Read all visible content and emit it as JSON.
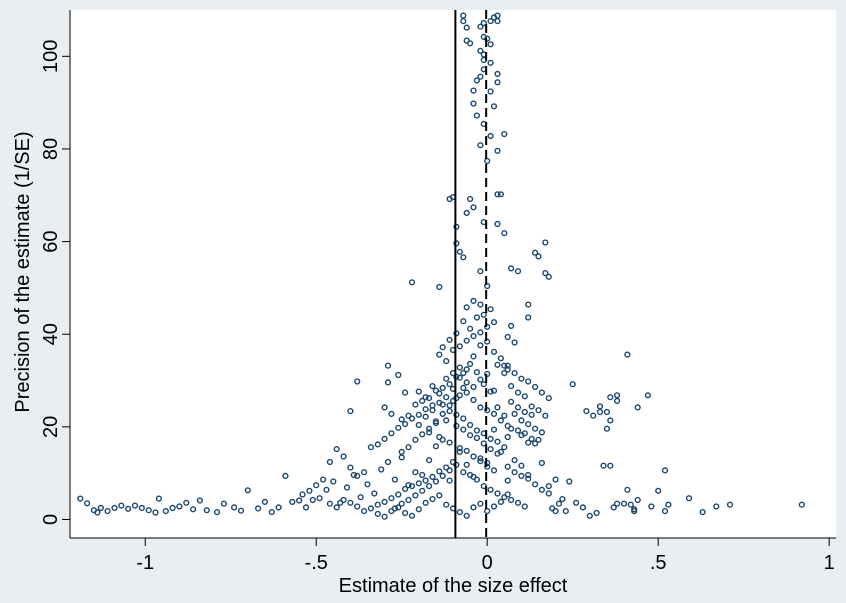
{
  "chart_data": {
    "type": "scatter",
    "xlabel": "Estimate of the size effect",
    "ylabel": "Precision of the estimate (1/SE)",
    "xlim": [
      -1.22,
      1.02
    ],
    "ylim": [
      -4,
      110
    ],
    "x_ticks": [
      -1,
      -0.5,
      0,
      0.5,
      1
    ],
    "x_tick_labels": [
      "-1",
      "-.5",
      "0",
      ".5",
      "1"
    ],
    "y_ticks": [
      0,
      20,
      40,
      60,
      80,
      100
    ],
    "y_tick_labels": [
      "0",
      "20",
      "40",
      "60",
      "80",
      "100"
    ],
    "grid": false,
    "legend": "none",
    "reference_lines": [
      {
        "axis": "x",
        "value": -0.093,
        "style": "solid"
      },
      {
        "axis": "x",
        "value": -0.003,
        "style": "dashed"
      }
    ],
    "colors": {
      "marker": "#1a476f",
      "background": "#e9eef2",
      "plot_area": "#ffffff",
      "axis": "#000000"
    },
    "points": [
      [
        -1.19,
        4.5
      ],
      [
        -1.17,
        3.5
      ],
      [
        -1.15,
        2
      ],
      [
        -1.14,
        1.5
      ],
      [
        -1.13,
        2.5
      ],
      [
        -1.11,
        1.8
      ],
      [
        -1.09,
        2.5
      ],
      [
        -1.07,
        3
      ],
      [
        -1.05,
        2.3
      ],
      [
        -1.03,
        3
      ],
      [
        -1.01,
        2.5
      ],
      [
        -0.99,
        2
      ],
      [
        -0.97,
        1.5
      ],
      [
        -0.96,
        4.5
      ],
      [
        -0.94,
        1.8
      ],
      [
        -0.92,
        2.5
      ],
      [
        -0.9,
        2.8
      ],
      [
        -0.88,
        3.6
      ],
      [
        -0.86,
        2.2
      ],
      [
        -0.84,
        4.1
      ],
      [
        -0.82,
        2
      ],
      [
        -0.79,
        1.6
      ],
      [
        -0.77,
        3.4
      ],
      [
        -0.74,
        2.6
      ],
      [
        -0.72,
        1.9
      ],
      [
        -0.7,
        6.3
      ],
      [
        -0.67,
        2.4
      ],
      [
        -0.65,
        3.8
      ],
      [
        -0.63,
        1.6
      ],
      [
        -0.61,
        2.6
      ],
      [
        -0.59,
        9.4
      ],
      [
        -0.57,
        3.8
      ],
      [
        -0.55,
        4.1
      ],
      [
        -0.53,
        2.6
      ],
      [
        -0.51,
        4.2
      ],
      [
        -0.49,
        4.6
      ],
      [
        -0.47,
        6.4
      ],
      [
        -0.45,
        8.2
      ],
      [
        -0.43,
        3.6
      ],
      [
        -0.41,
        6.9
      ],
      [
        -0.39,
        9.6
      ],
      [
        -0.37,
        4.8
      ],
      [
        -0.35,
        7.6
      ],
      [
        -0.33,
        5.6
      ],
      [
        -0.31,
        10.8
      ],
      [
        -0.29,
        12.4
      ],
      [
        -0.27,
        8.6
      ],
      [
        -0.25,
        14.6
      ],
      [
        -0.23,
        7.4
      ],
      [
        -0.21,
        10.2
      ],
      [
        -0.19,
        9.6
      ],
      [
        -0.17,
        12.8
      ],
      [
        -0.15,
        15.8
      ],
      [
        -0.13,
        17.2
      ],
      [
        -0.11,
        8.4
      ],
      [
        -0.08,
        14.6
      ],
      [
        -0.06,
        11.8
      ],
      [
        -0.04,
        9.2
      ],
      [
        -0.02,
        13.2
      ],
      [
        0,
        12.2
      ],
      [
        0.02,
        10.6
      ],
      [
        0.04,
        14.6
      ],
      [
        0.06,
        8.4
      ],
      [
        0.08,
        12.8
      ],
      [
        0.1,
        11.6
      ],
      [
        0.12,
        9.6
      ],
      [
        0.14,
        16.4
      ],
      [
        0.16,
        12.2
      ],
      [
        0.18,
        7.2
      ],
      [
        0.2,
        8.6
      ],
      [
        0.15,
        17.2
      ],
      [
        0.12,
        16.6
      ],
      [
        0.1,
        18.2
      ],
      [
        0.07,
        19.6
      ],
      [
        0.05,
        22.4
      ],
      [
        0.03,
        24.2
      ],
      [
        0.01,
        27.6
      ],
      [
        -0.01,
        29.2
      ],
      [
        -0.03,
        31.8
      ],
      [
        -0.05,
        33.6
      ],
      [
        -0.07,
        28.4
      ],
      [
        -0.09,
        26.2
      ],
      [
        -0.11,
        24.6
      ],
      [
        -0.13,
        22.8
      ],
      [
        -0.15,
        21.2
      ],
      [
        -0.17,
        19.6
      ],
      [
        -0.19,
        18.4
      ],
      [
        -0.21,
        17.2
      ],
      [
        -0.23,
        15.6
      ],
      [
        -0.25,
        13.4
      ],
      [
        -0.12,
        26.4
      ],
      [
        -0.1,
        28.2
      ],
      [
        -0.08,
        30.6
      ],
      [
        -0.06,
        32.4
      ],
      [
        -0.04,
        35.2
      ],
      [
        -0.02,
        37.6
      ],
      [
        0,
        38.4
      ],
      [
        0.02,
        36.2
      ],
      [
        0.04,
        34.8
      ],
      [
        0.06,
        33.2
      ],
      [
        -0.14,
        25.2
      ],
      [
        -0.11,
        23.4
      ],
      [
        -0.09,
        22.6
      ],
      [
        -0.07,
        21.8
      ],
      [
        -0.05,
        20.4
      ],
      [
        -0.03,
        19.2
      ],
      [
        -0.01,
        18.6
      ],
      [
        0.01,
        17.4
      ],
      [
        0.03,
        16.8
      ],
      [
        0.05,
        15.6
      ],
      [
        -0.16,
        23.6
      ],
      [
        -0.13,
        24.8
      ],
      [
        -0.1,
        25.6
      ],
      [
        -0.08,
        26.8
      ],
      [
        -0.06,
        27.4
      ],
      [
        -0.04,
        25.8
      ],
      [
        -0.02,
        24.2
      ],
      [
        0,
        23.6
      ],
      [
        0.02,
        22.8
      ],
      [
        0.04,
        21.4
      ],
      [
        -0.18,
        22.2
      ],
      [
        -0.15,
        20.8
      ],
      [
        -0.12,
        21.4
      ],
      [
        -0.09,
        20.2
      ],
      [
        -0.07,
        19.4
      ],
      [
        -0.05,
        18.2
      ],
      [
        -0.03,
        17.6
      ],
      [
        -0.01,
        16.4
      ],
      [
        0.01,
        15.2
      ],
      [
        0.03,
        14.2
      ],
      [
        -0.2,
        20.4
      ],
      [
        -0.17,
        18.8
      ],
      [
        -0.14,
        17.8
      ],
      [
        -0.11,
        16.6
      ],
      [
        -0.08,
        15.4
      ],
      [
        -0.06,
        14.8
      ],
      [
        -0.04,
        13.6
      ],
      [
        -0.02,
        12.6
      ],
      [
        0,
        11.4
      ],
      [
        0.02,
        19.4
      ],
      [
        -0.12,
        30.4
      ],
      [
        -0.1,
        31.6
      ],
      [
        -0.08,
        32.8
      ],
      [
        -0.06,
        29.6
      ],
      [
        -0.04,
        28.6
      ],
      [
        -0.02,
        30.2
      ],
      [
        0,
        31.4
      ],
      [
        0.02,
        27.8
      ],
      [
        -0.14,
        27.2
      ],
      [
        -0.16,
        28.8
      ],
      [
        -0.12,
        34.2
      ],
      [
        -0.14,
        35.6
      ],
      [
        -0.1,
        36.6
      ],
      [
        -0.08,
        37.4
      ],
      [
        -0.06,
        38.6
      ],
      [
        -0.04,
        39.6
      ],
      [
        -0.02,
        40.4
      ],
      [
        0,
        41.6
      ],
      [
        0.02,
        42.6
      ],
      [
        -0.05,
        41.2
      ],
      [
        -0.03,
        43.6
      ],
      [
        -0.01,
        44.2
      ],
      [
        0.01,
        45.4
      ],
      [
        -0.04,
        47.2
      ],
      [
        -0.06,
        45.8
      ],
      [
        -0.02,
        46.4
      ],
      [
        -0.07,
        42.8
      ],
      [
        -0.09,
        40.2
      ],
      [
        -0.11,
        38.8
      ],
      [
        -0.13,
        37.2
      ],
      [
        -0.1,
        69.6
      ],
      [
        -0.11,
        69.2
      ],
      [
        -0.09,
        63.2
      ],
      [
        -0.07,
        56.6
      ],
      [
        -0.08,
        57.8
      ],
      [
        -0.09,
        59.6
      ],
      [
        -0.06,
        66.2
      ],
      [
        -0.04,
        67.4
      ],
      [
        -0.05,
        69.2
      ],
      [
        -0.01,
        64.2
      ],
      [
        0.04,
        70.2
      ],
      [
        0.03,
        70.2
      ],
      [
        0.05,
        61.8
      ],
      [
        0.03,
        63.8
      ],
      [
        -0.14,
        50.2
      ],
      [
        -0.22,
        51.2
      ],
      [
        -0.02,
        53.6
      ],
      [
        0,
        50.4
      ],
      [
        0.07,
        54.2
      ],
      [
        0.09,
        53.6
      ],
      [
        0.17,
        59.8
      ],
      [
        0.15,
        56.8
      ],
      [
        0.14,
        57.6
      ],
      [
        0.17,
        53.2
      ],
      [
        0.18,
        52.4
      ],
      [
        0.12,
        46.4
      ],
      [
        0.12,
        43.6
      ],
      [
        0.07,
        41.8
      ],
      [
        0.06,
        39.4
      ],
      [
        0.08,
        38.2
      ],
      [
        0.01,
        82.8
      ],
      [
        -0.01,
        85.4
      ],
      [
        0.05,
        83.2
      ],
      [
        0.03,
        79.6
      ],
      [
        0,
        77.4
      ],
      [
        -0.02,
        80.8
      ],
      [
        -0.03,
        87.2
      ],
      [
        -0.04,
        89.8
      ],
      [
        -0.04,
        92.6
      ],
      [
        -0.03,
        94.8
      ],
      [
        -0.02,
        95.6
      ],
      [
        0.01,
        92.4
      ],
      [
        0.03,
        96.2
      ],
      [
        0.03,
        94.4
      ],
      [
        0.02,
        89.2
      ],
      [
        -0.01,
        97.2
      ],
      [
        -0.01,
        99.2
      ],
      [
        0.01,
        98.6
      ],
      [
        -0.01,
        100.4
      ],
      [
        -0.02,
        101.2
      ],
      [
        0.01,
        102.6
      ],
      [
        -0.01,
        104.2
      ],
      [
        0,
        103.8
      ],
      [
        -0.07,
        107.6
      ],
      [
        -0.07,
        108.8
      ],
      [
        -0.06,
        106.2
      ],
      [
        -0.05,
        102.8
      ],
      [
        -0.06,
        103.4
      ],
      [
        0.02,
        108.4
      ],
      [
        0.01,
        107.6
      ],
      [
        -0.01,
        107.2
      ],
      [
        0.03,
        108.8
      ],
      [
        0.03,
        107.6
      ],
      [
        -0.02,
        106.4
      ],
      [
        0.03,
        33.4
      ],
      [
        0.05,
        33.2
      ],
      [
        0.06,
        32.4
      ],
      [
        0.08,
        31.6
      ],
      [
        0.1,
        30.4
      ],
      [
        0.12,
        29.8
      ],
      [
        0.14,
        28.6
      ],
      [
        0.16,
        27.4
      ],
      [
        0.18,
        26.2
      ],
      [
        0.05,
        31.6
      ],
      [
        0.07,
        28.8
      ],
      [
        0.09,
        27.4
      ],
      [
        0.11,
        26.6
      ],
      [
        0.13,
        24.4
      ],
      [
        0.15,
        23.6
      ],
      [
        0.17,
        22.4
      ],
      [
        0.07,
        25.4
      ],
      [
        0.09,
        24.2
      ],
      [
        0.11,
        23.2
      ],
      [
        0.13,
        22.6
      ],
      [
        0.08,
        22.8
      ],
      [
        0.1,
        21.4
      ],
      [
        0.12,
        20.6
      ],
      [
        0.14,
        19.6
      ],
      [
        0.16,
        18.8
      ],
      [
        0.06,
        20.2
      ],
      [
        0.09,
        19.2
      ],
      [
        0.11,
        18.6
      ],
      [
        0.13,
        17.4
      ],
      [
        0.06,
        17.8
      ],
      [
        0.35,
        23.2
      ],
      [
        0.36,
        21.4
      ],
      [
        0.33,
        24.4
      ],
      [
        0.38,
        25.6
      ],
      [
        0.36,
        26.4
      ],
      [
        0.38,
        26.8
      ],
      [
        0.41,
        35.6
      ],
      [
        0.44,
        24.2
      ],
      [
        0.47,
        26.8
      ],
      [
        0.31,
        22.4
      ],
      [
        0.29,
        23.4
      ],
      [
        0.25,
        29.2
      ],
      [
        0.36,
        11.6
      ],
      [
        0.34,
        11.6
      ],
      [
        0.35,
        19.6
      ],
      [
        0.33,
        23.2
      ],
      [
        0.52,
        10.6
      ],
      [
        0.5,
        6.2
      ],
      [
        0.41,
        6.4
      ],
      [
        0.38,
        3.4
      ],
      [
        0.37,
        2.6
      ],
      [
        0.4,
        3.4
      ],
      [
        0.42,
        3.2
      ],
      [
        0.44,
        4.2
      ],
      [
        0.28,
        2.6
      ],
      [
        0.22,
        4.4
      ],
      [
        0.24,
        8.2
      ],
      [
        0.2,
        1.8
      ],
      [
        0.26,
        3.6
      ],
      [
        0.32,
        1.4
      ],
      [
        0.43,
        1.8
      ],
      [
        0.43,
        2.2
      ],
      [
        0.48,
        2.8
      ],
      [
        0.52,
        1.8
      ],
      [
        0.53,
        3.2
      ],
      [
        0.59,
        4.6
      ],
      [
        0.63,
        1.6
      ],
      [
        0.67,
        2.8
      ],
      [
        0.71,
        3.2
      ],
      [
        0.92,
        3.2
      ],
      [
        0.3,
        0.8
      ],
      [
        -0.4,
        3.6
      ],
      [
        -0.42,
        4.2
      ],
      [
        -0.44,
        2.6
      ],
      [
        -0.46,
        3.4
      ],
      [
        -0.38,
        2.8
      ],
      [
        -0.36,
        1.8
      ],
      [
        -0.34,
        2.4
      ],
      [
        -0.32,
        3.2
      ],
      [
        -0.3,
        3.8
      ],
      [
        -0.28,
        4.6
      ],
      [
        -0.26,
        5.4
      ],
      [
        -0.24,
        6.6
      ],
      [
        -0.22,
        7.2
      ],
      [
        -0.2,
        7.8
      ],
      [
        -0.18,
        8.4
      ],
      [
        -0.16,
        9.2
      ],
      [
        -0.14,
        10.4
      ],
      [
        -0.12,
        11.2
      ],
      [
        -0.1,
        12.4
      ],
      [
        -0.27,
        2.4
      ],
      [
        -0.25,
        3.4
      ],
      [
        -0.23,
        4.2
      ],
      [
        -0.21,
        5.2
      ],
      [
        -0.19,
        6.2
      ],
      [
        -0.17,
        7.2
      ],
      [
        -0.15,
        8.2
      ],
      [
        -0.13,
        9.4
      ],
      [
        -0.11,
        10.6
      ],
      [
        -0.09,
        11.8
      ],
      [
        -0.07,
        10.2
      ],
      [
        -0.05,
        9.6
      ],
      [
        -0.03,
        8.6
      ],
      [
        -0.01,
        7.2
      ],
      [
        0.01,
        6.4
      ],
      [
        0.03,
        5.6
      ],
      [
        0.05,
        4.8
      ],
      [
        0.07,
        4.2
      ],
      [
        0.09,
        3.6
      ],
      [
        0.11,
        2.8
      ],
      [
        -0.32,
        1.2
      ],
      [
        -0.3,
        0.6
      ],
      [
        -0.28,
        1.8
      ],
      [
        -0.26,
        2.6
      ],
      [
        -0.24,
        1.4
      ],
      [
        -0.22,
        0.8
      ],
      [
        -0.2,
        2.2
      ],
      [
        -0.18,
        3.6
      ],
      [
        -0.16,
        4.4
      ],
      [
        -0.14,
        5.2
      ],
      [
        -0.12,
        3.2
      ],
      [
        -0.1,
        2.4
      ],
      [
        -0.08,
        1.6
      ],
      [
        -0.06,
        0.8
      ],
      [
        -0.04,
        2.6
      ],
      [
        -0.02,
        3.4
      ],
      [
        0,
        1.8
      ],
      [
        0.02,
        2.8
      ],
      [
        0.04,
        3.8
      ],
      [
        0.06,
        5.4
      ],
      [
        -0.36,
        10.2
      ],
      [
        -0.38,
        9.4
      ],
      [
        -0.4,
        11.2
      ],
      [
        -0.42,
        13.6
      ],
      [
        -0.44,
        15.2
      ],
      [
        -0.46,
        12.4
      ],
      [
        -0.48,
        8.6
      ],
      [
        -0.5,
        7.4
      ],
      [
        -0.52,
        6.2
      ],
      [
        -0.54,
        5.4
      ],
      [
        -0.34,
        15.6
      ],
      [
        -0.32,
        16.2
      ],
      [
        -0.3,
        17.4
      ],
      [
        -0.28,
        18.6
      ],
      [
        -0.26,
        19.8
      ],
      [
        -0.24,
        20.6
      ],
      [
        -0.22,
        21.8
      ],
      [
        -0.2,
        22.6
      ],
      [
        -0.18,
        23.8
      ],
      [
        -0.16,
        24.6
      ],
      [
        -0.29,
        29.6
      ],
      [
        -0.29,
        33.2
      ],
      [
        -0.38,
        29.8
      ],
      [
        -0.4,
        23.4
      ],
      [
        -0.26,
        31.2
      ],
      [
        -0.24,
        27.4
      ],
      [
        -0.2,
        27.6
      ],
      [
        -0.18,
        26.4
      ],
      [
        -0.3,
        24.2
      ],
      [
        -0.28,
        22.8
      ],
      [
        -0.25,
        21.6
      ],
      [
        -0.23,
        22.4
      ],
      [
        -0.21,
        24.8
      ],
      [
        -0.19,
        25.6
      ],
      [
        -0.17,
        26.2
      ],
      [
        -0.15,
        27.8
      ],
      [
        -0.13,
        28.4
      ],
      [
        -0.11,
        29.2
      ],
      [
        -0.09,
        30.8
      ],
      [
        -0.07,
        31.6
      ],
      [
        0.19,
        2.4
      ],
      [
        0.21,
        3.4
      ],
      [
        0.23,
        1.8
      ],
      [
        0.18,
        5.6
      ],
      [
        0.16,
        6.4
      ],
      [
        0.14,
        7.6
      ],
      [
        0.12,
        8.8
      ],
      [
        0.1,
        9.4
      ],
      [
        0.08,
        10.2
      ],
      [
        0.06,
        11.4
      ]
    ]
  }
}
